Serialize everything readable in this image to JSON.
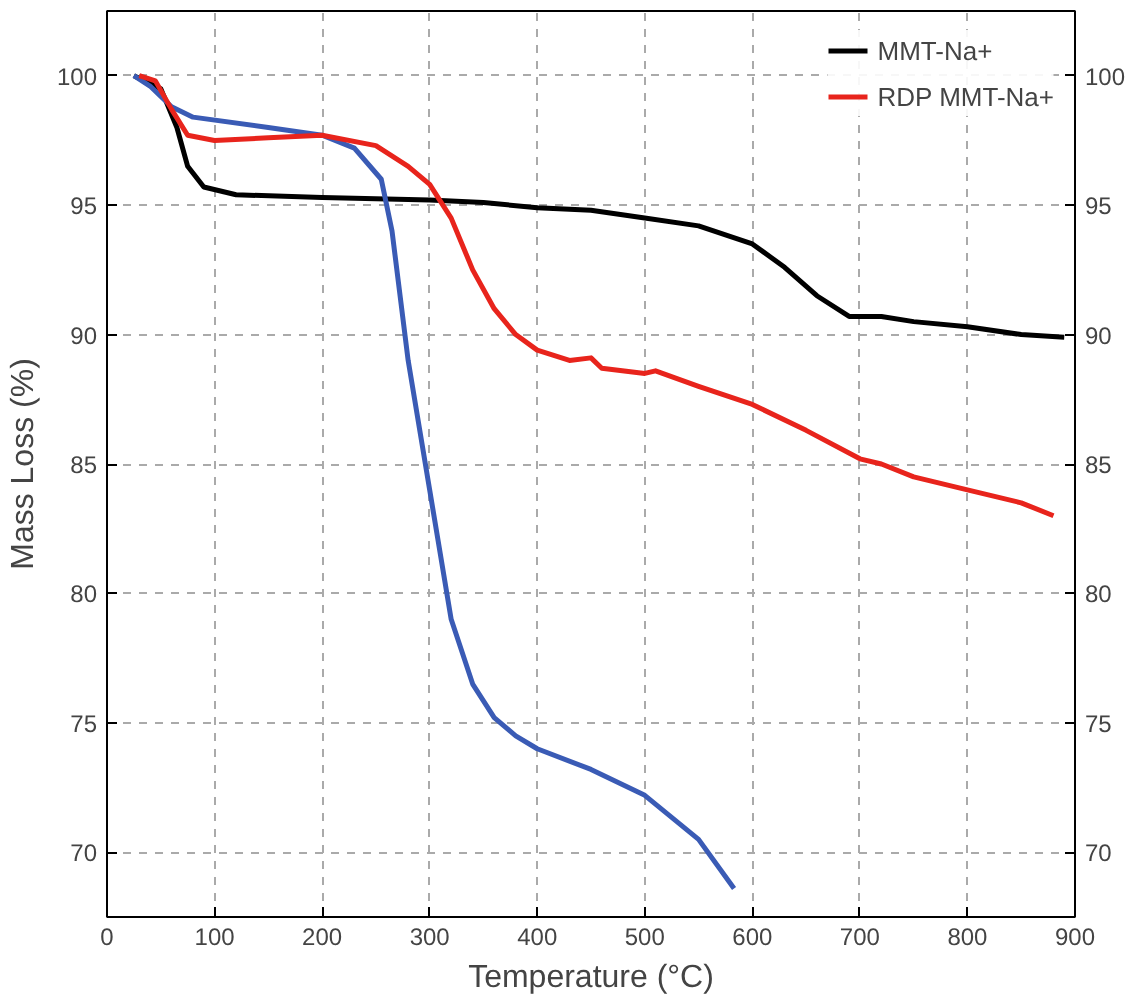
{
  "chart_data": {
    "type": "line",
    "xlabel": "Temperature (°C)",
    "ylabel": "Mass Loss (%)",
    "xlim": [
      0,
      900
    ],
    "xticks": [
      0,
      100,
      200,
      300,
      400,
      500,
      600,
      700,
      800,
      900
    ],
    "ylim": [
      67.5,
      102.5
    ],
    "yticks": [
      70,
      75,
      80,
      85,
      90,
      95,
      100
    ],
    "y2lim": [
      67.5,
      102.5
    ],
    "y2ticks": [
      70,
      75,
      80,
      85,
      90,
      95,
      100
    ],
    "grid": true,
    "legend": "top right",
    "line_style": "solid",
    "marker": "none",
    "series": [
      {
        "name": "MMT-Na+",
        "color": "#000000",
        "x": [
          25,
          50,
          65,
          75,
          90,
          120,
          200,
          300,
          350,
          400,
          450,
          500,
          550,
          600,
          630,
          660,
          690,
          720,
          750,
          800,
          850,
          890
        ],
        "values": [
          100,
          99.5,
          98,
          96.5,
          95.7,
          95.4,
          95.3,
          95.2,
          95.1,
          94.9,
          94.8,
          94.5,
          94.2,
          93.5,
          92.6,
          91.5,
          90.7,
          90.7,
          90.5,
          90.3,
          90.0,
          89.9
        ]
      },
      {
        "color": "#3a5bb5",
        "x": [
          25,
          40,
          60,
          80,
          150,
          200,
          230,
          255,
          265,
          280,
          300,
          320,
          340,
          360,
          380,
          400,
          450,
          500,
          550,
          583
        ],
        "values": [
          100,
          99.6,
          98.8,
          98.4,
          98.0,
          97.7,
          97.2,
          96,
          94,
          89,
          84,
          79,
          76.5,
          75.2,
          74.5,
          74,
          73.2,
          72.2,
          70.5,
          68.6
        ]
      },
      {
        "name": "RDP MMT-Na+",
        "color": "#e8241c",
        "x": [
          30,
          45,
          60,
          75,
          100,
          150,
          200,
          250,
          280,
          300,
          320,
          340,
          360,
          380,
          400,
          430,
          450,
          460,
          500,
          510,
          550,
          600,
          650,
          700,
          720,
          750,
          800,
          850,
          880
        ],
        "values": [
          100,
          99.8,
          98.7,
          97.7,
          97.5,
          97.6,
          97.7,
          97.3,
          96.5,
          95.8,
          94.5,
          92.5,
          91,
          90,
          89.4,
          89.0,
          89.1,
          88.7,
          88.5,
          88.6,
          88,
          87.3,
          86.3,
          85.2,
          85,
          84.5,
          84,
          83.5,
          83
        ]
      }
    ]
  }
}
